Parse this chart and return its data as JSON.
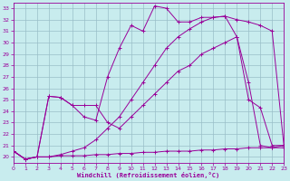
{
  "background_color": "#c8ecee",
  "grid_color": "#9abfc8",
  "line_color": "#990099",
  "xlabel": "Windchill (Refroidissement éolien,°C)",
  "xlim": [
    0,
    23
  ],
  "ylim": [
    19.5,
    33.5
  ],
  "xticks": [
    0,
    1,
    2,
    3,
    4,
    5,
    6,
    7,
    8,
    9,
    10,
    11,
    12,
    13,
    14,
    15,
    16,
    17,
    18,
    19,
    20,
    21,
    22,
    23
  ],
  "yticks": [
    20,
    21,
    22,
    23,
    24,
    25,
    26,
    27,
    28,
    29,
    30,
    31,
    32,
    33
  ],
  "lines": [
    [
      20.5,
      19.8,
      20.0,
      20.0,
      20.1,
      20.1,
      20.1,
      20.2,
      20.2,
      20.3,
      20.3,
      20.4,
      20.4,
      20.5,
      20.5,
      20.5,
      20.6,
      20.6,
      20.7,
      20.7,
      20.8,
      20.8,
      20.8,
      20.8
    ],
    [
      20.5,
      19.8,
      20.0,
      25.3,
      25.2,
      24.5,
      24.5,
      24.5,
      23.0,
      22.5,
      23.5,
      24.5,
      25.5,
      26.5,
      27.5,
      28.0,
      29.0,
      29.5,
      30.0,
      30.5,
      26.5,
      21.0,
      20.8,
      21.0
    ],
    [
      20.5,
      19.8,
      20.0,
      20.0,
      20.2,
      20.5,
      20.8,
      21.5,
      22.5,
      23.5,
      25.0,
      26.5,
      28.0,
      29.5,
      30.5,
      31.2,
      31.8,
      32.2,
      32.3,
      32.0,
      31.8,
      31.5,
      31.0,
      21.0
    ],
    [
      20.5,
      19.8,
      20.0,
      25.3,
      25.2,
      24.5,
      23.5,
      23.2,
      27.0,
      29.5,
      31.5,
      31.0,
      33.2,
      33.0,
      31.8,
      31.8,
      32.2,
      32.2,
      32.3,
      30.5,
      25.0,
      24.3,
      21.0,
      21.0
    ]
  ]
}
